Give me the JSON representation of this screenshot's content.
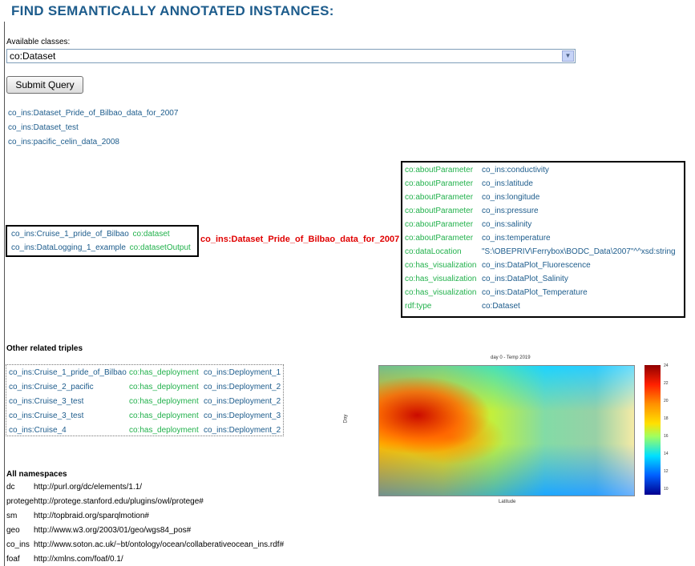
{
  "title": "FIND SEMANTICALLY ANNOTATED INSTANCES:",
  "query": {
    "classes_label": "Available classes:",
    "selected_class": "co:Dataset",
    "submit_label": "Submit Query"
  },
  "results": [
    "co_ins:Dataset_Pride_of_Bilbao_data_for_2007",
    "co_ins:Dataset_test",
    "co_ins:pacific_celin_data_2008"
  ],
  "incoming": [
    {
      "subject": "co_ins:Cruise_1_pride_of_Bilbao",
      "predicate": "co:dataset"
    },
    {
      "subject": "co_ins:DataLogging_1_example",
      "predicate": "co:datasetOutput"
    }
  ],
  "center_instance": "co_ins:Dataset_Pride_of_Bilbao_data_for_2007",
  "properties": [
    {
      "predicate": "co:aboutParameter",
      "object": "co_ins:conductivity"
    },
    {
      "predicate": "co:aboutParameter",
      "object": "co_ins:latitude"
    },
    {
      "predicate": "co:aboutParameter",
      "object": "co_ins:longitude"
    },
    {
      "predicate": "co:aboutParameter",
      "object": "co_ins:pressure"
    },
    {
      "predicate": "co:aboutParameter",
      "object": "co_ins:salinity"
    },
    {
      "predicate": "co:aboutParameter",
      "object": "co_ins:temperature"
    },
    {
      "predicate": "co:dataLocation",
      "object": "\"S:\\OBEPRIV\\Ferrybox\\BODC_Data\\2007\"^^xsd:string"
    },
    {
      "predicate": "co:has_visualization",
      "object": "co_ins:DataPlot_Fluorescence"
    },
    {
      "predicate": "co:has_visualization",
      "object": "co_ins:DataPlot_Salinity"
    },
    {
      "predicate": "co:has_visualization",
      "object": "co_ins:DataPlot_Temperature"
    },
    {
      "predicate": "rdf:type",
      "object": "co:Dataset"
    }
  ],
  "related": {
    "heading": "Other related triples",
    "rows": [
      {
        "subject": "co_ins:Cruise_1_pride_of_Bilbao",
        "predicate": "co:has_deployment",
        "object": "co_ins:Deployment_1"
      },
      {
        "subject": "co_ins:Cruise_2_pacific",
        "predicate": "co:has_deployment",
        "object": "co_ins:Deployment_2"
      },
      {
        "subject": "co_ins:Cruise_3_test",
        "predicate": "co:has_deployment",
        "object": "co_ins:Deployment_2"
      },
      {
        "subject": "co_ins:Cruise_3_test",
        "predicate": "co:has_deployment",
        "object": "co_ins:Deployment_3"
      },
      {
        "subject": "co_ins:Cruise_4",
        "predicate": "co:has_deployment",
        "object": "co_ins:Deployment_2"
      }
    ]
  },
  "namespaces": {
    "heading": "All namespaces",
    "items": [
      {
        "prefix": "dc",
        "uri": "http://purl.org/dc/elements/1.1/"
      },
      {
        "prefix": "protege",
        "uri": "http://protege.stanford.edu/plugins/owl/protege#"
      },
      {
        "prefix": "sm",
        "uri": "http://topbraid.org/sparqlmotion#"
      },
      {
        "prefix": "geo",
        "uri": "http://www.w3.org/2003/01/geo/wgs84_pos#"
      },
      {
        "prefix": "co_ins",
        "uri": "http://www.soton.ac.uk/~bt/ontology/ocean/collaberativeocean_ins.rdf#"
      },
      {
        "prefix": "foaf",
        "uri": "http://xmlns.com/foaf/0.1/"
      }
    ]
  },
  "plot": {
    "title": "day 0 - Temp 2019",
    "ylabel": "Day",
    "xlabel": "Latitude",
    "colorbar_ticks": [
      "24",
      "22",
      "20",
      "18",
      "16",
      "14",
      "12",
      "10"
    ],
    "colors": [
      "#00008f",
      "#0050ff",
      "#00c8ff",
      "#60ffa0",
      "#d0ff30",
      "#ffd000",
      "#ff6000",
      "#d00000",
      "#800000"
    ]
  }
}
